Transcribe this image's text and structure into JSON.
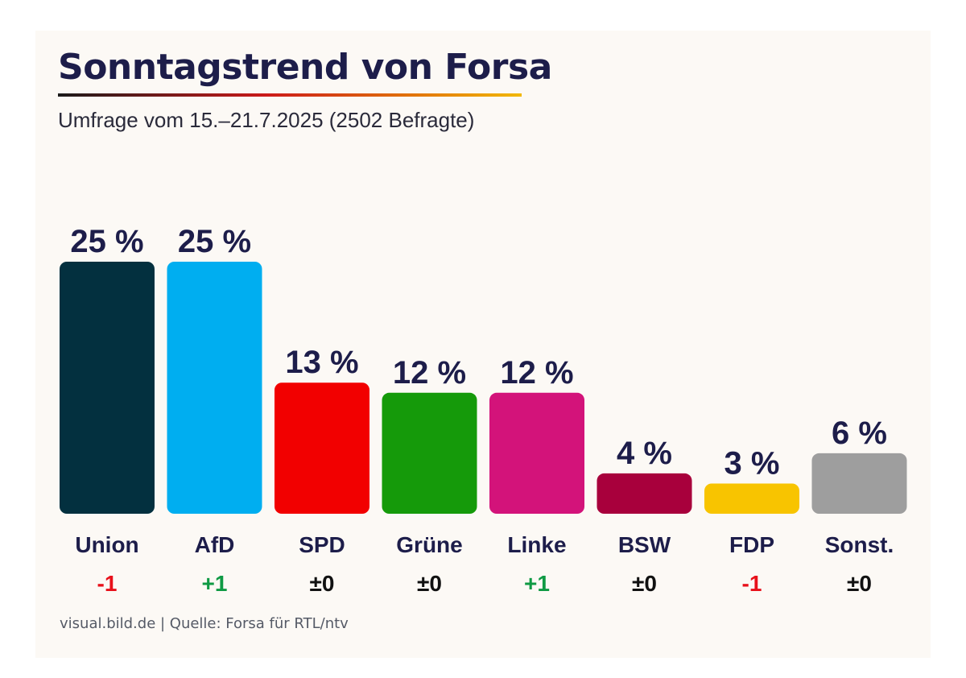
{
  "chart_data": {
    "type": "bar",
    "title": "Sonntagstrend von Forsa",
    "subtitle": "Umfrage vom 15.–21.7.2025 (2502 Befragte)",
    "categories": [
      "Union",
      "AfD",
      "SPD",
      "Grüne",
      "Linke",
      "BSW",
      "FDP",
      "Sonst."
    ],
    "values": [
      25,
      25,
      13,
      12,
      12,
      4,
      3,
      6
    ],
    "value_labels": [
      "25 %",
      "25 %",
      "13 %",
      "12 %",
      "12 %",
      "4 %",
      "3 %",
      "6 %"
    ],
    "changes": [
      "-1",
      "+1",
      "±0",
      "±0",
      "+1",
      "±0",
      "-1",
      "±0"
    ],
    "colors": [
      "#03303f",
      "#00aef0",
      "#f20000",
      "#159a0a",
      "#d3137a",
      "#a8003c",
      "#f8c400",
      "#9e9e9e"
    ],
    "change_colors": {
      "positive": "#0f9a44",
      "negative": "#e8101a",
      "neutral": "#111111"
    },
    "ylim": [
      0,
      25
    ],
    "xlabel": "",
    "ylabel": ""
  },
  "source": "visual.bild.de | Quelle: Forsa für RTL/ntv"
}
